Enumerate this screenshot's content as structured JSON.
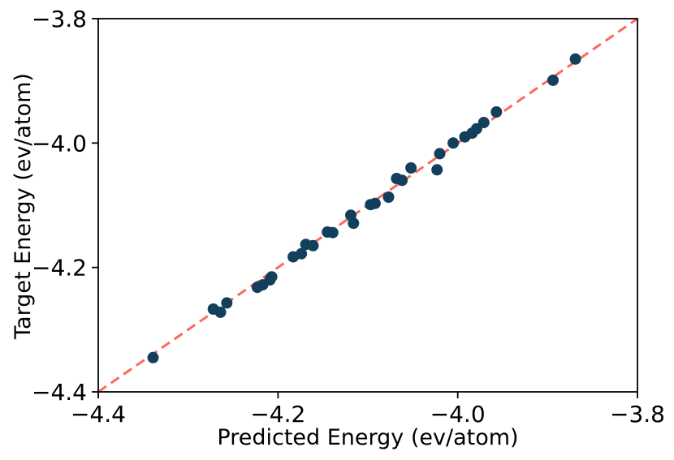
{
  "figure": {
    "background": "#ffffff",
    "border_color": "#000000"
  },
  "chart_data": {
    "type": "scatter",
    "title": "",
    "xlabel": "Predicted Energy (ev/atom)",
    "ylabel": "Target Energy (ev/atom)",
    "xlim": [
      -4.4,
      -3.8
    ],
    "ylim": [
      -4.4,
      -3.8
    ],
    "x_ticks": [
      -4.4,
      -4.2,
      -4.0,
      -3.8
    ],
    "y_ticks": [
      -3.8,
      -4.0,
      -4.2,
      -4.4
    ],
    "x_tick_labels": [
      "−4.4",
      "−4.2",
      "−4.0",
      "−3.8"
    ],
    "y_tick_labels": [
      "−3.8",
      "−4.0",
      "−4.2",
      "−4.4"
    ],
    "grid": false,
    "legend": null,
    "marker_color": "#123f5c",
    "marker_radius": 7,
    "parity_line": {
      "color": "#fb6a5d",
      "style": "dashed",
      "from": [
        -4.4,
        -4.4
      ],
      "to": [
        -3.8,
        -3.8
      ]
    },
    "series": [
      {
        "name": "predictions",
        "points": [
          [
            -4.339,
            -4.345
          ],
          [
            -4.272,
            -4.267
          ],
          [
            -4.264,
            -4.272
          ],
          [
            -4.257,
            -4.257
          ],
          [
            -4.223,
            -4.232
          ],
          [
            -4.217,
            -4.228
          ],
          [
            -4.209,
            -4.22
          ],
          [
            -4.207,
            -4.215
          ],
          [
            -4.183,
            -4.183
          ],
          [
            -4.174,
            -4.178
          ],
          [
            -4.169,
            -4.163
          ],
          [
            -4.161,
            -4.165
          ],
          [
            -4.145,
            -4.143
          ],
          [
            -4.139,
            -4.144
          ],
          [
            -4.119,
            -4.116
          ],
          [
            -4.116,
            -4.129
          ],
          [
            -4.097,
            -4.099
          ],
          [
            -4.092,
            -4.097
          ],
          [
            -4.077,
            -4.087
          ],
          [
            -4.068,
            -4.057
          ],
          [
            -4.062,
            -4.06
          ],
          [
            -4.052,
            -4.04
          ],
          [
            -4.023,
            -4.043
          ],
          [
            -4.02,
            -4.017
          ],
          [
            -4.005,
            -4.0
          ],
          [
            -3.992,
            -3.99
          ],
          [
            -3.984,
            -3.984
          ],
          [
            -3.979,
            -3.977
          ],
          [
            -3.971,
            -3.967
          ],
          [
            -3.957,
            -3.95
          ],
          [
            -3.894,
            -3.899
          ],
          [
            -3.869,
            -3.865
          ]
        ]
      }
    ]
  }
}
